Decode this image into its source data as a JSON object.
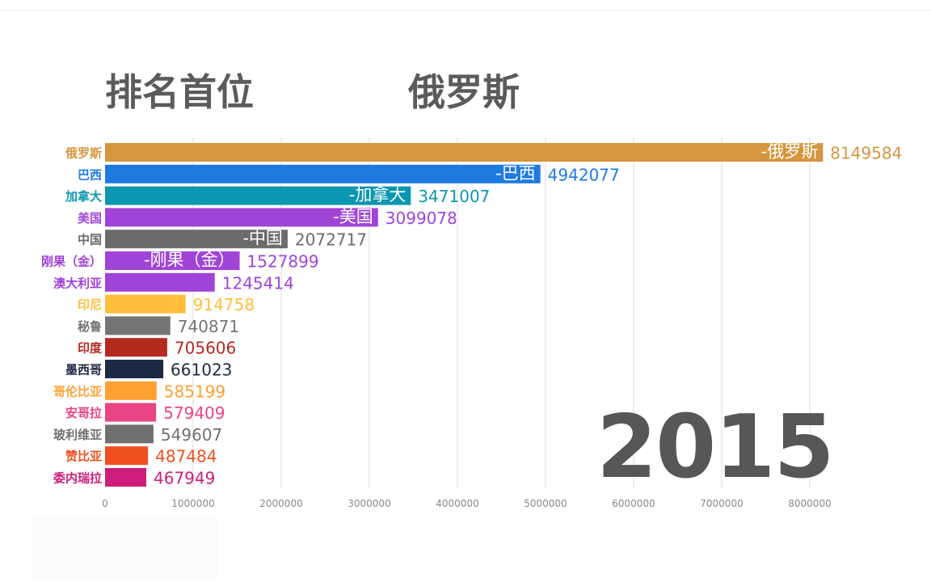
{
  "header": {
    "label": "排名首位",
    "leader": "俄罗斯"
  },
  "year": "2015",
  "chart_data": {
    "type": "bar",
    "orientation": "horizontal",
    "xlim": [
      0,
      8200000
    ],
    "xticks": [
      0,
      1000000,
      2000000,
      3000000,
      4000000,
      5000000,
      6000000,
      7000000,
      8000000
    ],
    "xtick_labels": [
      "0",
      "1000000",
      "2000000",
      "3000000",
      "4000000",
      "5000000",
      "6000000",
      "7000000",
      "8000000"
    ],
    "grid": true,
    "categories": [
      "俄罗斯",
      "巴西",
      "加拿大",
      "美国",
      "中国",
      "刚果（金）",
      "澳大利亚",
      "印尼",
      "秘鲁",
      "印度",
      "墨西哥",
      "哥伦比亚",
      "安哥拉",
      "玻利维亚",
      "赞比亚",
      "委内瑞拉"
    ],
    "values": [
      8149584,
      4942077,
      3471007,
      3099078,
      2072717,
      1527899,
      1245414,
      914758,
      740871,
      705606,
      661023,
      585199,
      579409,
      549607,
      487484,
      467949
    ],
    "value_labels": [
      "8149584",
      "4942077",
      "3471007",
      "3099078",
      "2072717",
      "1527899",
      "1245414",
      "914758",
      "740871",
      "705606",
      "661023",
      "585199",
      "579409",
      "549607",
      "487484",
      "467949"
    ],
    "inbar_labels": [
      "-俄罗斯",
      "-巴西",
      "-加拿大",
      "-美国",
      "-中国",
      "-刚果（金）",
      "",
      "",
      "",
      "",
      "",
      "",
      "",
      "",
      "",
      ""
    ],
    "colors": [
      "#d4963f",
      "#1f7ae0",
      "#0d96b0",
      "#a044d8",
      "#6b6b6b",
      "#a044d8",
      "#a044d8",
      "#ffbf3c",
      "#757575",
      "#b52a1f",
      "#1e2a44",
      "#ffa033",
      "#e94484",
      "#707070",
      "#f0501f",
      "#cc1e7a"
    ]
  }
}
